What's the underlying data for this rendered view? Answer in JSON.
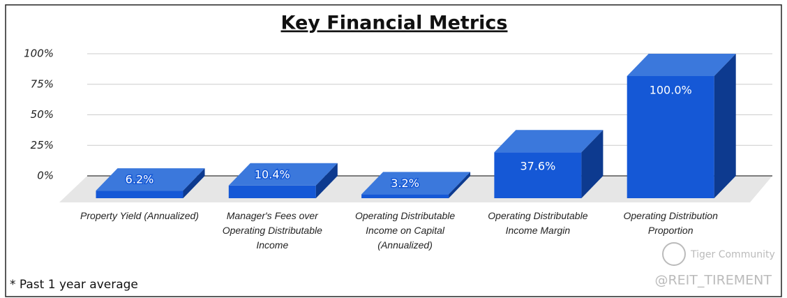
{
  "chart_data": {
    "type": "bar3d",
    "title": "Key Financial Metrics",
    "categories": [
      "Property Yield (Annualized)",
      "Manager's Fees over Operating Distributable Income",
      "Operating Distributable Income on Capital (Annualized)",
      "Operating Distributable Income Margin",
      "Operating Distribution Proportion"
    ],
    "values": [
      6.2,
      10.4,
      3.2,
      37.6,
      100.0
    ],
    "value_labels": [
      "6.2%",
      "10.4%",
      "3.2%",
      "37.6%",
      "100.0%"
    ],
    "color": "#1558d6",
    "ylim": [
      0,
      100
    ],
    "yticks": [
      {
        "value": 0,
        "label": "0%"
      },
      {
        "value": 25,
        "label": "25%"
      },
      {
        "value": 50,
        "label": "50%"
      },
      {
        "value": 75,
        "label": "75%"
      },
      {
        "value": 100,
        "label": "100%"
      }
    ],
    "grid": true,
    "footnote": "* Past 1 year average",
    "watermarks": [
      "Tiger Community",
      "@REIT_TIREMENT"
    ]
  }
}
